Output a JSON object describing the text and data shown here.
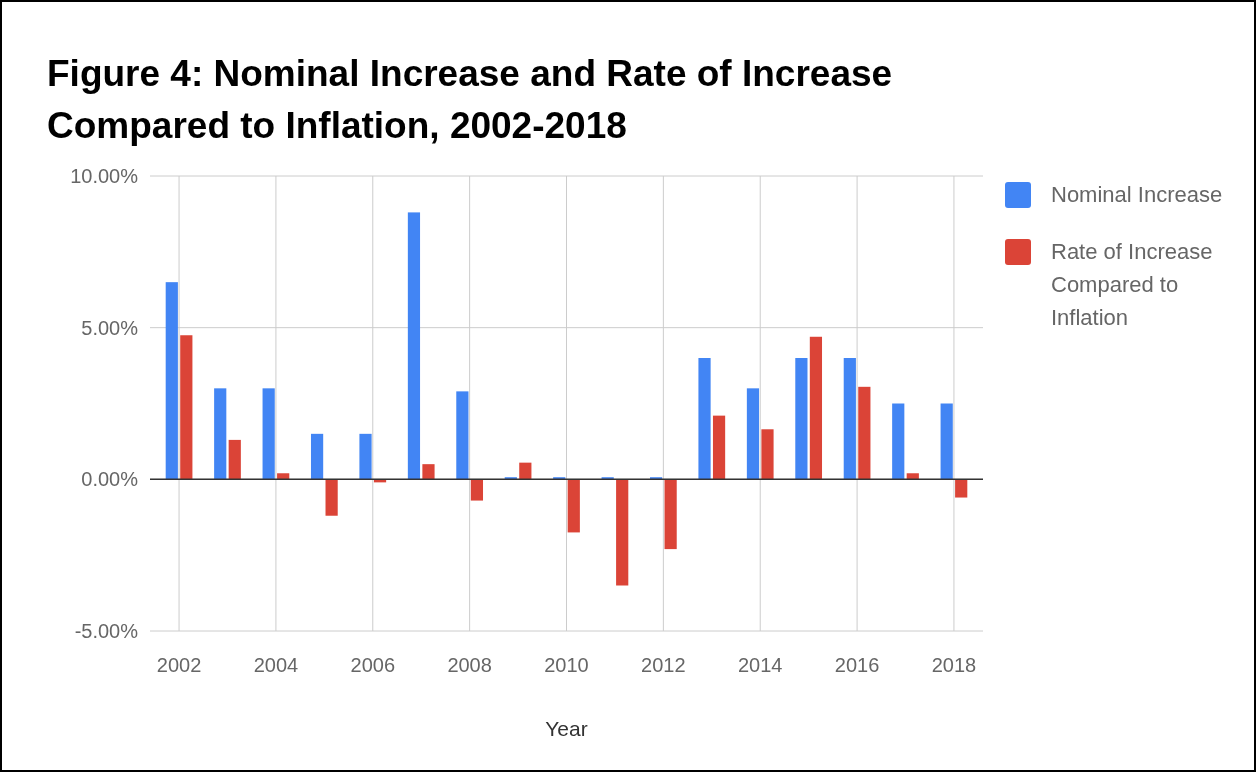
{
  "chart_data": {
    "type": "bar",
    "title": "Figure 4: Nominal Increase and Rate of Increase Compared to Inflation, 2002-2018",
    "xlabel": "Year",
    "x": [
      2002,
      2003,
      2004,
      2005,
      2006,
      2007,
      2008,
      2009,
      2010,
      2011,
      2012,
      2013,
      2014,
      2015,
      2016,
      2017,
      2018
    ],
    "xlim": [
      2001.4,
      2018.6
    ],
    "xticks": [
      2002,
      2004,
      2006,
      2008,
      2010,
      2012,
      2014,
      2016,
      2018
    ],
    "ylim": [
      -5,
      10
    ],
    "yticks": [
      {
        "value": -5,
        "label": "-5.00%"
      },
      {
        "value": 0,
        "label": "0.00%"
      },
      {
        "value": 5,
        "label": "5.00%"
      },
      {
        "value": 10,
        "label": "10.00%"
      }
    ],
    "grid": true,
    "legend": "right",
    "series": [
      {
        "name": "Nominal Increase",
        "color": "#4285f4",
        "values": [
          6.5,
          3.0,
          3.0,
          1.5,
          1.5,
          8.8,
          2.9,
          0.07,
          0.07,
          0.07,
          0.07,
          4.0,
          3.0,
          4.0,
          4.0,
          2.5,
          2.5
        ]
      },
      {
        "name": "Rate of Increase Compared to Inflation",
        "color": "#db4437",
        "values": [
          4.75,
          1.3,
          0.2,
          -1.2,
          -0.1,
          0.5,
          -0.7,
          0.55,
          -1.75,
          -3.5,
          -2.3,
          2.1,
          1.65,
          4.7,
          3.05,
          0.2,
          -0.6
        ]
      }
    ]
  }
}
